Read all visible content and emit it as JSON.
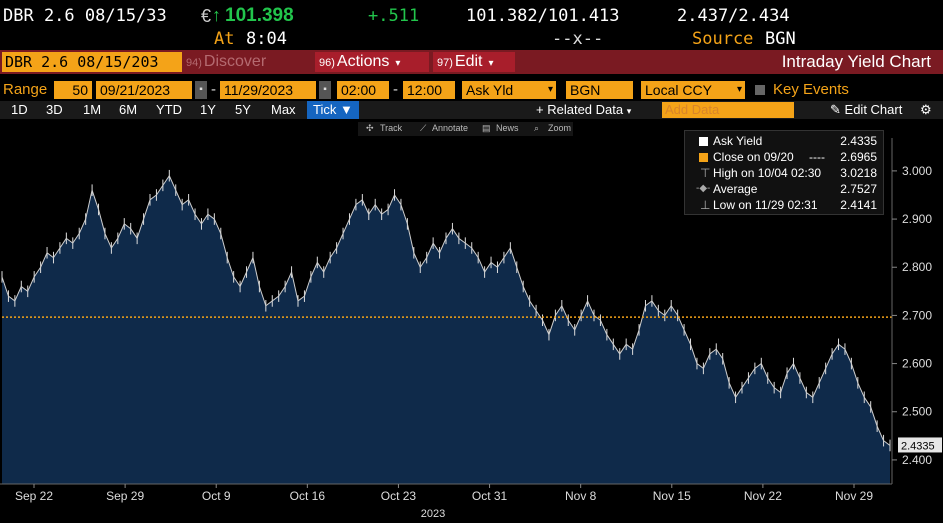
{
  "quote": {
    "security": "DBR 2.6 08/15/33",
    "currency_symbol": "€",
    "arrow": "↑",
    "last": "101.398",
    "change": "+.511",
    "bid_ask_price": "101.382/101.413",
    "bid_ask_yield": "2.437/2.434",
    "at_label": "At",
    "at_time": "8:04",
    "dash": "--x--",
    "source_label": "Source",
    "source": "BGN"
  },
  "menu": {
    "security_field": "DBR 2.6 08/15/203",
    "discover_num": "94)",
    "discover": "Discover",
    "actions_num": "96)",
    "actions": "Actions",
    "edit_num": "97)",
    "edit": "Edit",
    "title": "Intraday Yield Chart"
  },
  "controls": {
    "range_label": "Range",
    "bars": "50",
    "start_date": "09/21/2023",
    "end_date": "11/29/2023",
    "start_time": "02:00",
    "end_time": "12:00",
    "field": "Ask Yld",
    "source": "BGN",
    "currency": "Local CCY",
    "key_events": "Key Events"
  },
  "periods": {
    "items": [
      "1D",
      "3D",
      "1M",
      "6M",
      "YTD",
      "1Y",
      "5Y",
      "Max"
    ],
    "tick": "Tick",
    "related": "Related Data",
    "add_data_placeholder": "Add Data",
    "edit_chart": "Edit Chart"
  },
  "chart_toolbar": {
    "track": "Track",
    "annotate": "Annotate",
    "news": "News",
    "zoom": "Zoom"
  },
  "legend": {
    "ask_yield_label": "Ask Yield",
    "ask_yield_value": "2.4335",
    "close_label": "Close on 09/20",
    "close_dash": "----",
    "close_value": "2.6965",
    "high_label": "High on 10/04 02:30",
    "high_value": "3.0218",
    "avg_label": "Average",
    "avg_value": "2.7527",
    "low_label": "Low on 11/29 02:31",
    "low_value": "2.4141"
  },
  "colors": {
    "accent": "#f4a318",
    "menubar": "#7a1a22",
    "area_fill": "#0f2a4a",
    "up": "#22c54c",
    "tick_button": "#1565c0"
  },
  "chart_data": {
    "type": "area",
    "y_axis_ticks": [
      "2.400",
      "2.500",
      "2.600",
      "2.700",
      "2.800",
      "2.900",
      "3.000"
    ],
    "ylim": [
      2.35,
      3.06
    ],
    "x_tick_labels": [
      "Sep 22",
      "Sep 29",
      "Oct 9",
      "Oct 16",
      "Oct 23",
      "Oct 31",
      "Nov 8",
      "Nov 15",
      "Nov 22",
      "Nov 29"
    ],
    "x_year_label": "2023",
    "last_value_label": "2.4335",
    "reference_line": {
      "name": "Close on 09/20",
      "value": 2.6965
    },
    "series": [
      {
        "name": "Ask Yield",
        "values": [
          2.78,
          2.74,
          2.73,
          2.76,
          2.75,
          2.78,
          2.8,
          2.83,
          2.82,
          2.84,
          2.86,
          2.85,
          2.87,
          2.9,
          2.96,
          2.92,
          2.87,
          2.84,
          2.86,
          2.89,
          2.88,
          2.86,
          2.9,
          2.94,
          2.95,
          2.97,
          2.99,
          2.96,
          2.93,
          2.94,
          2.91,
          2.89,
          2.91,
          2.9,
          2.87,
          2.82,
          2.78,
          2.76,
          2.79,
          2.82,
          2.76,
          2.72,
          2.73,
          2.74,
          2.76,
          2.79,
          2.73,
          2.74,
          2.78,
          2.81,
          2.79,
          2.82,
          2.84,
          2.87,
          2.9,
          2.93,
          2.94,
          2.91,
          2.93,
          2.91,
          2.92,
          2.95,
          2.93,
          2.89,
          2.83,
          2.8,
          2.82,
          2.85,
          2.83,
          2.86,
          2.88,
          2.86,
          2.85,
          2.84,
          2.82,
          2.79,
          2.81,
          2.8,
          2.82,
          2.84,
          2.8,
          2.76,
          2.73,
          2.71,
          2.69,
          2.66,
          2.7,
          2.72,
          2.69,
          2.67,
          2.7,
          2.73,
          2.7,
          2.69,
          2.66,
          2.64,
          2.62,
          2.64,
          2.63,
          2.67,
          2.72,
          2.73,
          2.71,
          2.7,
          2.72,
          2.7,
          2.67,
          2.64,
          2.6,
          2.59,
          2.62,
          2.63,
          2.61,
          2.56,
          2.53,
          2.55,
          2.57,
          2.59,
          2.6,
          2.57,
          2.55,
          2.54,
          2.58,
          2.6,
          2.57,
          2.54,
          2.53,
          2.56,
          2.59,
          2.62,
          2.64,
          2.63,
          2.6,
          2.56,
          2.53,
          2.51,
          2.47,
          2.44,
          2.43
        ]
      }
    ]
  }
}
